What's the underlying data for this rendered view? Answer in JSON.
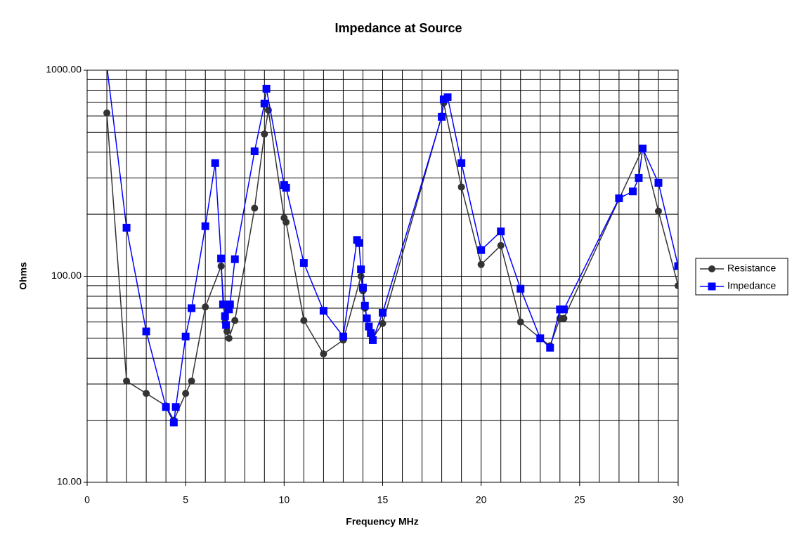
{
  "chart_data": {
    "type": "line",
    "title": "Impedance at Source",
    "x_label": "Frequency MHz",
    "y_label": "Ohms",
    "log_y": true,
    "grid": true,
    "legend": "right",
    "xlim": [
      0,
      30
    ],
    "xticks": [
      0,
      5,
      10,
      15,
      20,
      25,
      30
    ],
    "minor_xticks": [
      1,
      2,
      3,
      4,
      6,
      7,
      8,
      9,
      11,
      12,
      13,
      14,
      16,
      17,
      18,
      19,
      21,
      22,
      23,
      24,
      26,
      27,
      28,
      29
    ],
    "ylim": [
      10,
      1000
    ],
    "yticks": [
      {
        "value": 10,
        "label": "10.00"
      },
      {
        "value": 100,
        "label": "100.00"
      },
      {
        "value": 1000,
        "label": "1000.00"
      }
    ],
    "minor_yticks": [
      20,
      30,
      40,
      50,
      60,
      70,
      80,
      90,
      200,
      300,
      400,
      500,
      600,
      700,
      800,
      900
    ],
    "series": [
      {
        "name": "Resistance",
        "color": "#333333",
        "marker": "circle",
        "x": [
          1,
          2,
          3,
          4,
          4.4,
          5,
          5.3,
          6,
          6.8,
          7,
          7.1,
          7.2,
          7.5,
          8.5,
          9,
          9.2,
          10,
          10.1,
          11,
          12,
          13,
          13.9,
          14,
          14.1,
          14.2,
          14.3,
          14.4,
          14.5,
          15,
          18,
          18.1,
          19,
          20,
          21,
          22,
          23,
          23.5,
          24,
          24.2,
          27,
          28.2,
          29,
          30
        ],
        "values": [
          620,
          31,
          27,
          23.5,
          20,
          27,
          31,
          71,
          112,
          60,
          54,
          50,
          61,
          214,
          490,
          640,
          192,
          183,
          61,
          42,
          49,
          100,
          85,
          70,
          62,
          57,
          53,
          50,
          59,
          600,
          693,
          271,
          114,
          141,
          60,
          50,
          46,
          62.5,
          62.5,
          237,
          417,
          207,
          90
        ]
      },
      {
        "name": "Impedance",
        "color": "#0000ff",
        "marker": "square",
        "x": [
          1,
          2,
          3,
          4,
          4.4,
          4.5,
          5,
          5.3,
          6,
          6.5,
          6.8,
          6.9,
          7,
          7.05,
          7.2,
          7.25,
          7.5,
          8.5,
          9,
          9.1,
          10,
          10.1,
          11,
          12,
          13,
          13.7,
          13.8,
          13.9,
          14,
          14.1,
          14.2,
          14.3,
          14.4,
          14.5,
          15,
          18,
          18.1,
          18.3,
          19,
          20,
          21,
          22,
          23,
          23.5,
          24,
          24.2,
          27,
          27.7,
          28,
          28.2,
          29,
          30
        ],
        "values": [
          1050,
          172,
          54,
          23.2,
          19.5,
          23.2,
          51,
          70,
          175,
          354,
          122,
          73,
          64,
          58,
          69,
          73,
          121,
          404,
          689,
          813,
          277,
          269,
          116,
          68,
          51,
          150,
          145,
          108,
          88,
          72,
          62.5,
          57,
          53,
          49,
          66.5,
          594,
          722,
          739,
          354,
          134,
          165,
          87,
          50,
          45,
          69,
          69,
          239,
          258,
          300,
          417,
          284,
          112
        ]
      }
    ]
  }
}
